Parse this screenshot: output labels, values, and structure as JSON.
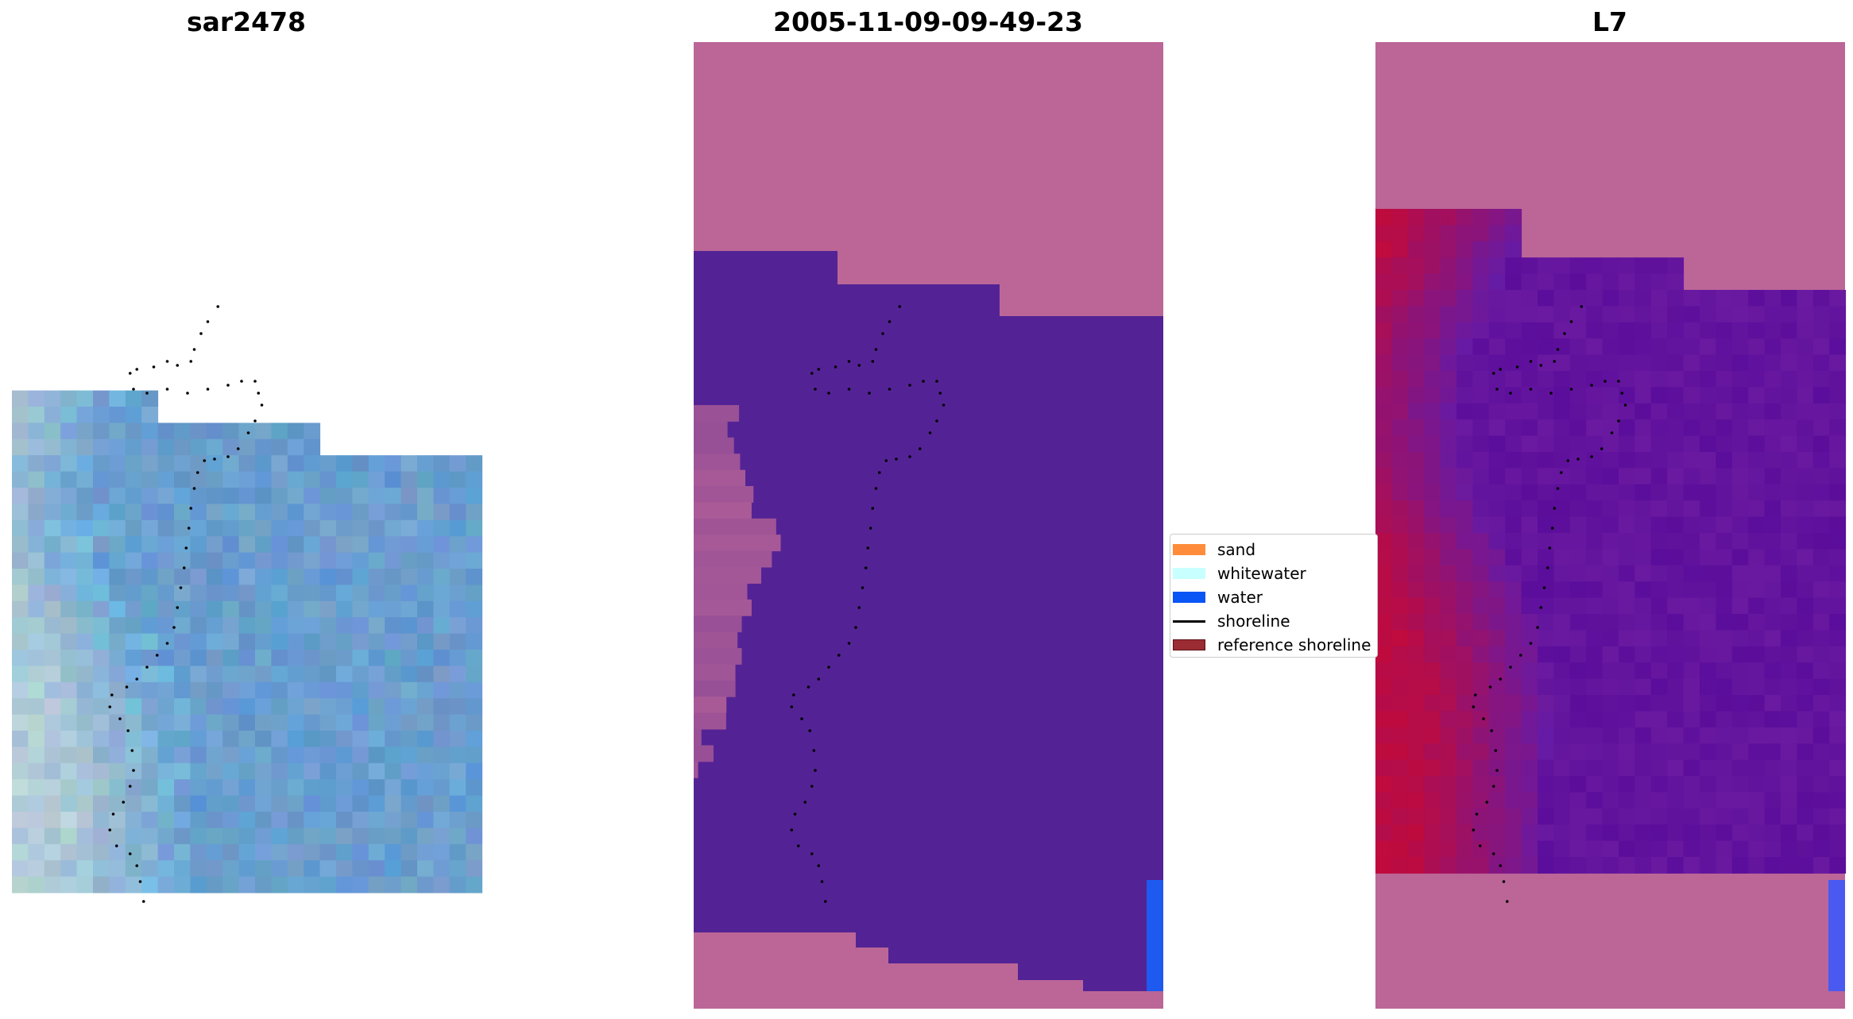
{
  "panels": [
    {
      "title": "sar2478"
    },
    {
      "title": "2005-11-09-09-49-23"
    },
    {
      "title": "L7"
    }
  ],
  "legend": {
    "items": [
      {
        "label": "sand",
        "color": "#ff8c3a",
        "kind": "patch"
      },
      {
        "label": "whitewater",
        "color": "#c8ffff",
        "kind": "patch"
      },
      {
        "label": "water",
        "color": "#0a55f5",
        "kind": "patch"
      },
      {
        "label": "shoreline",
        "color": "#000000",
        "kind": "line"
      },
      {
        "label": "reference shoreline",
        "color": "#9b2c34",
        "kind": "patch"
      }
    ]
  },
  "colors": {
    "rgb_base": "#6a9ecf",
    "rgb_bright": "#e8f0dc",
    "rgb_cyan": "#78d2f0",
    "mask_pink": "#bb6697",
    "mask_purple": "#532395",
    "mask_water": "#1e59f0",
    "ndwi_red": "#c20a3a",
    "ndwi_purple": "#6a1aa0"
  }
}
